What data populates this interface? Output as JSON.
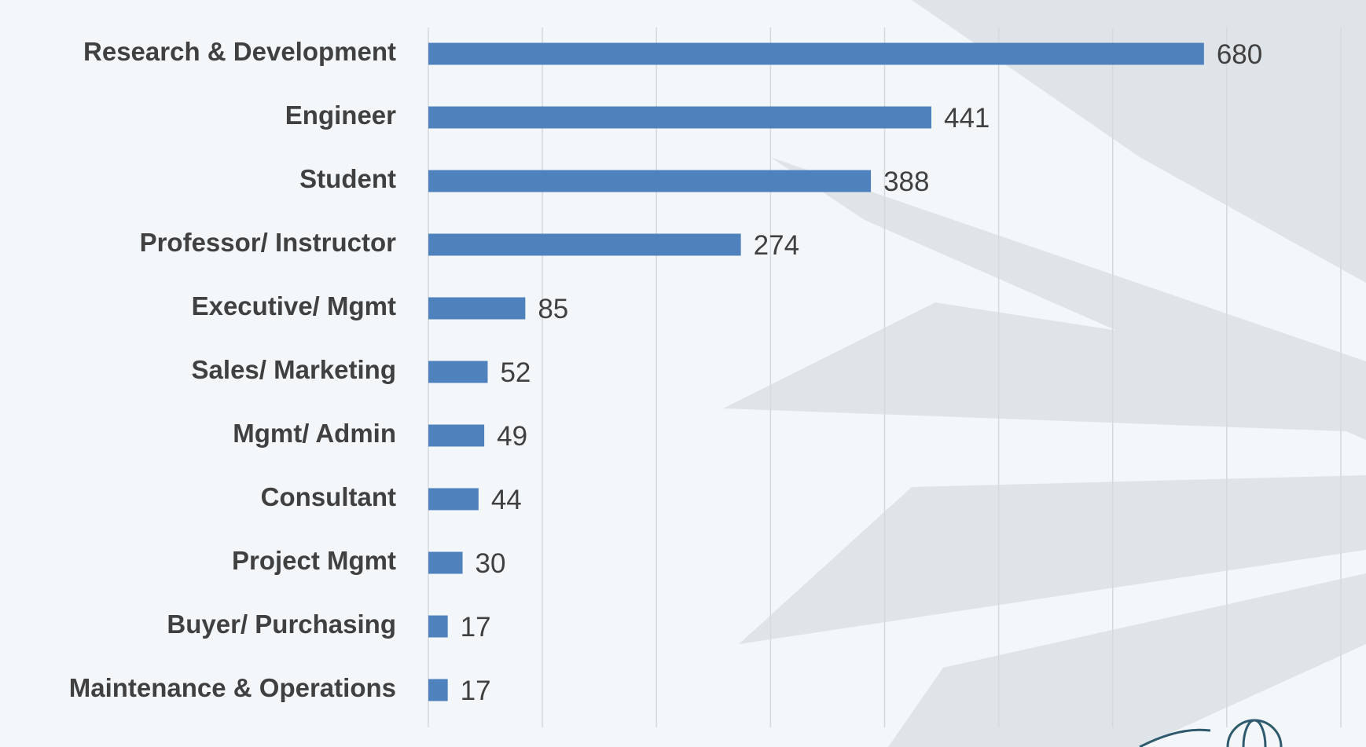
{
  "chart_data": {
    "type": "hbar",
    "categories": [
      "Research & Development",
      "Engineer",
      "Student",
      "Professor/ Instructor",
      "Executive/ Mgmt",
      "Sales/ Marketing",
      "Mgmt/ Admin",
      "Consultant",
      "Project Mgmt",
      "Buyer/ Purchasing",
      "Maintenance & Operations"
    ],
    "values": [
      680,
      441,
      388,
      274,
      85,
      52,
      49,
      44,
      30,
      17,
      17
    ],
    "color": "#4f81bd",
    "xlim": [
      0,
      800
    ],
    "xticks": [
      0,
      100,
      200,
      300,
      400,
      500,
      600,
      700,
      800
    ],
    "grid": true,
    "show_tick_labels": false
  }
}
